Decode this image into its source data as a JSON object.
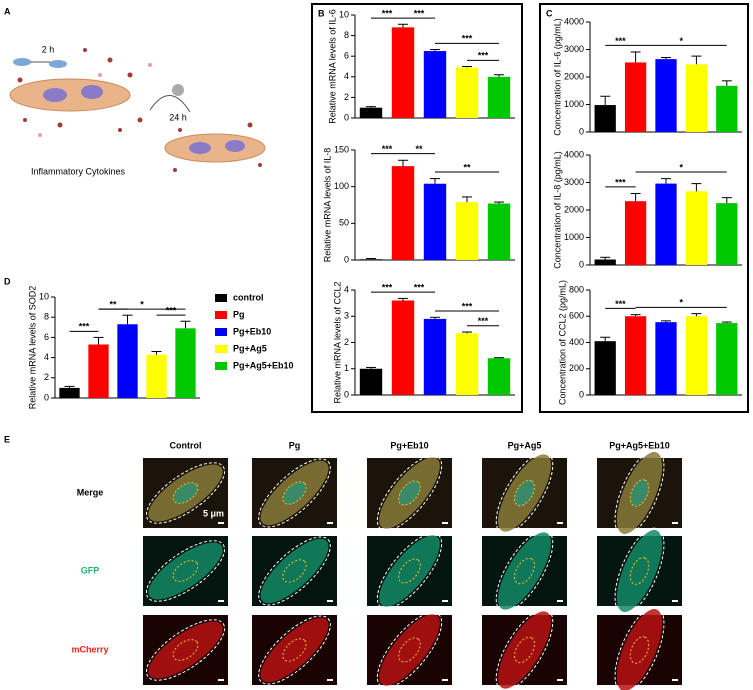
{
  "panel_labels": [
    "A",
    "B",
    "C",
    "D",
    "E"
  ],
  "schematic": {
    "step1": "2 h",
    "step2": "24 h",
    "caption": "Inflammatory Cytokines"
  },
  "legend": [
    {
      "name": "control",
      "color": "#000000"
    },
    {
      "name": "Pg",
      "color": "#ff0000"
    },
    {
      "name": "Pg+Eb10",
      "color": "#0000ff"
    },
    {
      "name": "Pg+Ag5",
      "color": "#ffff00"
    },
    {
      "name": "Pg+Ag5+Eb10",
      "color": "#00c800"
    }
  ],
  "chart_data": [
    {
      "type": "bar",
      "ylabel": "Relative mRNA levels of IL-6",
      "ylim": [
        0,
        10
      ],
      "yticks": [
        0,
        2,
        4,
        6,
        8,
        10
      ],
      "values": [
        1.0,
        8.8,
        6.5,
        4.9,
        4.0
      ],
      "errors": [
        0.1,
        0.3,
        0.15,
        0.1,
        0.2
      ],
      "significance": [
        {
          "from": 0,
          "to": 1,
          "label": "***"
        },
        {
          "from": 1,
          "to": 2,
          "label": "***"
        },
        {
          "from": 2,
          "to": 4,
          "label": "***"
        },
        {
          "from": 3,
          "to": 4,
          "label": "***"
        }
      ]
    },
    {
      "type": "bar",
      "ylabel": "Relative mRNA levels of IL-8",
      "ylim": [
        0,
        150
      ],
      "yticks": [
        0,
        50,
        100,
        150
      ],
      "values": [
        1,
        128,
        104,
        79,
        77
      ],
      "errors": [
        1,
        8,
        7,
        7,
        2
      ],
      "significance": [
        {
          "from": 0,
          "to": 1,
          "label": "***"
        },
        {
          "from": 1,
          "to": 2,
          "label": "**"
        },
        {
          "from": 2,
          "to": 4,
          "label": "**"
        }
      ]
    },
    {
      "type": "bar",
      "ylabel": "Relative mRNA levels of CCL2",
      "ylim": [
        0,
        4
      ],
      "yticks": [
        0,
        1,
        2,
        3,
        4
      ],
      "values": [
        1.0,
        3.6,
        2.9,
        2.35,
        1.4
      ],
      "errors": [
        0.05,
        0.08,
        0.06,
        0.05,
        0.02
      ],
      "significance": [
        {
          "from": 0,
          "to": 1,
          "label": "***"
        },
        {
          "from": 1,
          "to": 2,
          "label": "***"
        },
        {
          "from": 2,
          "to": 4,
          "label": "***"
        },
        {
          "from": 3,
          "to": 4,
          "label": "***"
        }
      ]
    },
    {
      "type": "bar",
      "ylabel": "Concentration of IL-6 (pg/mL)",
      "ylim": [
        0,
        4000
      ],
      "yticks": [
        0,
        1000,
        2000,
        3000,
        4000
      ],
      "values": [
        980,
        2530,
        2650,
        2460,
        1680
      ],
      "errors": [
        320,
        380,
        60,
        300,
        180
      ],
      "significance": [
        {
          "from": 0,
          "to": 1,
          "label": "***"
        },
        {
          "from": 1,
          "to": 4,
          "label": "*"
        }
      ]
    },
    {
      "type": "bar",
      "ylabel": "Concentration of IL-8 (pg/mL)",
      "ylim": [
        0,
        4000
      ],
      "yticks": [
        0,
        1000,
        2000,
        3000,
        4000
      ],
      "values": [
        200,
        2320,
        2960,
        2680,
        2250
      ],
      "errors": [
        80,
        280,
        180,
        280,
        200
      ],
      "significance": [
        {
          "from": 0,
          "to": 1,
          "label": "***"
        },
        {
          "from": 1,
          "to": 4,
          "label": "*"
        }
      ]
    },
    {
      "type": "bar",
      "ylabel": "Concentration of CCL2 (pg/mL)",
      "ylim": [
        0,
        800
      ],
      "yticks": [
        0,
        200,
        400,
        600,
        800
      ],
      "values": [
        410,
        600,
        555,
        600,
        548
      ],
      "errors": [
        30,
        12,
        10,
        20,
        8
      ],
      "significance": [
        {
          "from": 0,
          "to": 1,
          "label": "***"
        },
        {
          "from": 1,
          "to": 4,
          "label": "*"
        }
      ]
    },
    {
      "type": "bar",
      "ylabel": "Relative mRNA levels of SOD2",
      "ylim": [
        0,
        10
      ],
      "yticks": [
        0,
        2,
        4,
        6,
        8,
        10
      ],
      "values": [
        1.0,
        5.3,
        7.3,
        4.3,
        6.9
      ],
      "errors": [
        0.15,
        0.7,
        0.9,
        0.3,
        0.7
      ],
      "significance": [
        {
          "from": 0,
          "to": 1,
          "label": "***"
        },
        {
          "from": 1,
          "to": 2,
          "label": "**"
        },
        {
          "from": 1,
          "to": 4,
          "label": "*"
        },
        {
          "from": 3,
          "to": 4,
          "label": "***"
        }
      ]
    }
  ],
  "microscopy": {
    "columns": [
      "Control",
      "Pg",
      "Pg+Eb10",
      "Pg+Ag5",
      "Pg+Ag5+Eb10"
    ],
    "rows": [
      {
        "name": "Merge",
        "color": "#000000"
      },
      {
        "name": "GFP",
        "color": "#1db56b"
      },
      {
        "name": "mCherry",
        "color": "#ff1a1a"
      }
    ],
    "scale_bar": "5 μm"
  }
}
